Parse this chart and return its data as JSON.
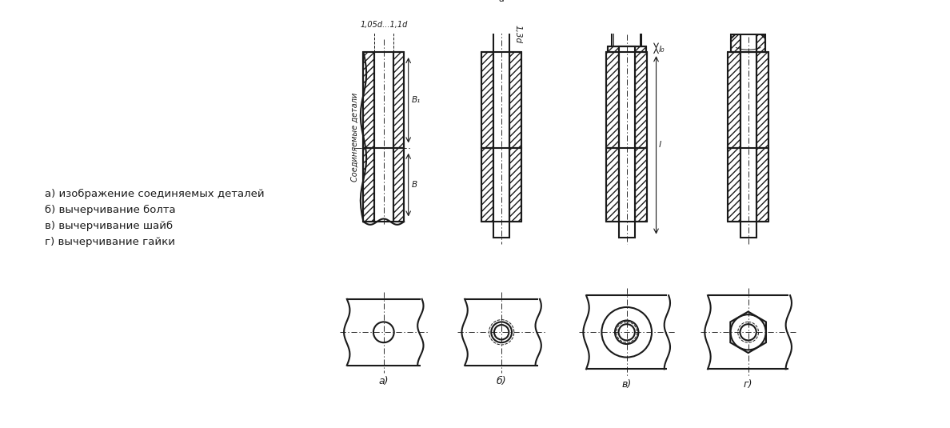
{
  "bg_color": "#ffffff",
  "line_color": "#1a1a1a",
  "text_color": "#1a1a1a",
  "left_labels": [
    "а) изображение соединяемых деталей",
    "б) вычерчивание болта",
    "в) вычерчивание шайб",
    "г) вычерчивание гайки"
  ],
  "annotations": {
    "dim_1_05": "1,05d...1,1d",
    "dim_d": "d",
    "dim_13d": "1,3d",
    "dim_B1": "B₁",
    "dim_B": "B",
    "dim_l0": "l₀",
    "dim_l": "l",
    "soed": "Соединяемые детали"
  },
  "figsize": [
    11.88,
    5.35
  ],
  "dpi": 100
}
